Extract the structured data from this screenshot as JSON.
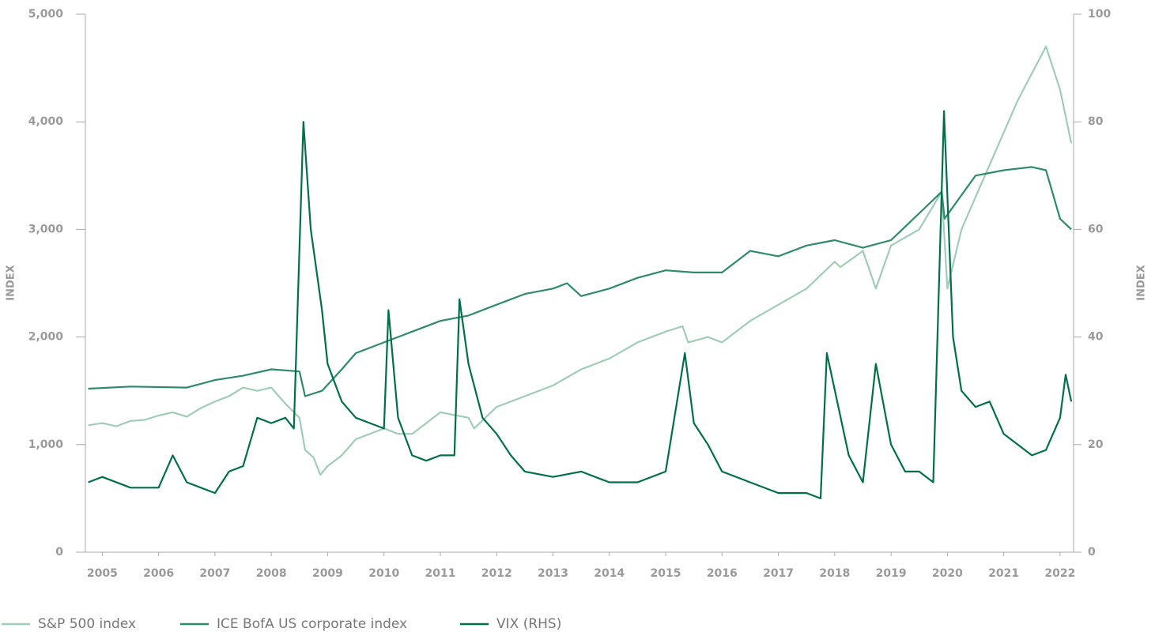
{
  "chart_data": {
    "type": "line",
    "ylabel": "INDEX",
    "y2label": "INDEX",
    "xlim": [
      2004.7,
      2022.24
    ],
    "xticks": [
      2005,
      2006,
      2007,
      2008,
      2009,
      2010,
      2011,
      2012,
      2013,
      2014,
      2015,
      2016,
      2017,
      2018,
      2019,
      2020,
      2021,
      2022
    ],
    "ylim": [
      0,
      5000
    ],
    "yticks": [
      0,
      {
        "value": 1000,
        "label": "1,000"
      },
      {
        "value": 2000,
        "label": "2,000"
      },
      {
        "value": 3000,
        "label": "3,000"
      },
      {
        "value": 4000,
        "label": "4,000"
      },
      {
        "value": 5000,
        "label": "5,000"
      }
    ],
    "y2lim": [
      0,
      100
    ],
    "y2ticks": [
      0,
      20,
      40,
      60,
      80,
      100
    ],
    "legend": "bottom-left",
    "series": [
      {
        "name": "S&P 500 index",
        "color": "#9fcdb7",
        "x": [
          2004.75,
          2005,
          2005.25,
          2005.5,
          2005.75,
          2006,
          2006.25,
          2006.5,
          2006.75,
          2007,
          2007.25,
          2007.5,
          2007.75,
          2008,
          2008.25,
          2008.5,
          2008.6,
          2008.75,
          2008.87,
          2009,
          2009.25,
          2009.5,
          2010,
          2010.25,
          2010.5,
          2010.75,
          2011,
          2011.5,
          2011.6,
          2012,
          2012.5,
          2013,
          2013.5,
          2014,
          2014.5,
          2015,
          2015.3,
          2015.4,
          2015.75,
          2016,
          2016.5,
          2017,
          2017.5,
          2018,
          2018.1,
          2018.5,
          2018.73,
          2019,
          2019.5,
          2019.9,
          2020,
          2020.25,
          2020.5,
          2020.75,
          2021,
          2021.25,
          2021.5,
          2021.75,
          2022,
          2022.2
        ],
        "values": [
          1180,
          1200,
          1170,
          1220,
          1230,
          1270,
          1300,
          1260,
          1340,
          1400,
          1450,
          1530,
          1500,
          1530,
          1380,
          1250,
          950,
          880,
          720,
          800,
          900,
          1050,
          1150,
          1100,
          1100,
          1200,
          1300,
          1250,
          1150,
          1350,
          1450,
          1550,
          1700,
          1800,
          1950,
          2050,
          2100,
          1950,
          2000,
          1950,
          2150,
          2300,
          2450,
          2700,
          2650,
          2800,
          2450,
          2850,
          3000,
          3350,
          2450,
          3000,
          3300,
          3600,
          3900,
          4200,
          4450,
          4700,
          4300,
          3800
        ]
      },
      {
        "name": "ICE BofA US corporate index",
        "color": "#2e8b6a",
        "x": [
          2004.75,
          2005.5,
          2006.5,
          2007,
          2007.5,
          2008,
          2008.5,
          2008.6,
          2008.9,
          2009.25,
          2009.5,
          2010,
          2010.5,
          2011,
          2011.5,
          2012,
          2012.5,
          2013,
          2013.25,
          2013.5,
          2014,
          2014.5,
          2015,
          2015.5,
          2016,
          2016.5,
          2017,
          2017.5,
          2018,
          2018.5,
          2019,
          2019.5,
          2019.9,
          2019.95,
          2020.5,
          2021,
          2021.5,
          2021.75,
          2022,
          2022.2
        ],
        "values": [
          1520,
          1540,
          1530,
          1600,
          1640,
          1700,
          1680,
          1450,
          1500,
          1700,
          1850,
          1950,
          2050,
          2150,
          2200,
          2300,
          2400,
          2450,
          2500,
          2380,
          2450,
          2550,
          2620,
          2600,
          2600,
          2800,
          2750,
          2850,
          2900,
          2830,
          2900,
          3150,
          3350,
          3100,
          3500,
          3550,
          3580,
          3550,
          3100,
          3000
        ]
      },
      {
        "name": "VIX (RHS)",
        "color": "#00704a",
        "axis": "y2",
        "x": [
          2004.75,
          2005,
          2005.5,
          2006,
          2006.25,
          2006.5,
          2007,
          2007.25,
          2007.5,
          2007.75,
          2008,
          2008.25,
          2008.4,
          2008.57,
          2008.7,
          2008.9,
          2009,
          2009.25,
          2009.5,
          2009.75,
          2010,
          2010.08,
          2010.25,
          2010.5,
          2010.75,
          2011,
          2011.25,
          2011.34,
          2011.5,
          2011.75,
          2012,
          2012.25,
          2012.5,
          2013,
          2013.5,
          2014,
          2014.5,
          2015,
          2015.34,
          2015.5,
          2015.75,
          2016,
          2016.5,
          2017,
          2017.5,
          2017.75,
          2017.86,
          2018.25,
          2018.5,
          2018.73,
          2019,
          2019.25,
          2019.5,
          2019.75,
          2019.94,
          2020.1,
          2020.25,
          2020.5,
          2020.75,
          2021,
          2021.25,
          2021.5,
          2021.75,
          2022,
          2022.1,
          2022.2
        ],
        "values": [
          13,
          14,
          12,
          12,
          18,
          13,
          11,
          15,
          16,
          25,
          24,
          25,
          23,
          80,
          60,
          45,
          35,
          28,
          25,
          24,
          23,
          45,
          25,
          18,
          17,
          18,
          18,
          47,
          35,
          25,
          22,
          18,
          15,
          14,
          15,
          13,
          13,
          15,
          37,
          24,
          20,
          15,
          13,
          11,
          11,
          10,
          37,
          18,
          13,
          35,
          20,
          15,
          15,
          13,
          82,
          40,
          30,
          27,
          28,
          22,
          20,
          18,
          19,
          25,
          33,
          28
        ]
      }
    ]
  }
}
